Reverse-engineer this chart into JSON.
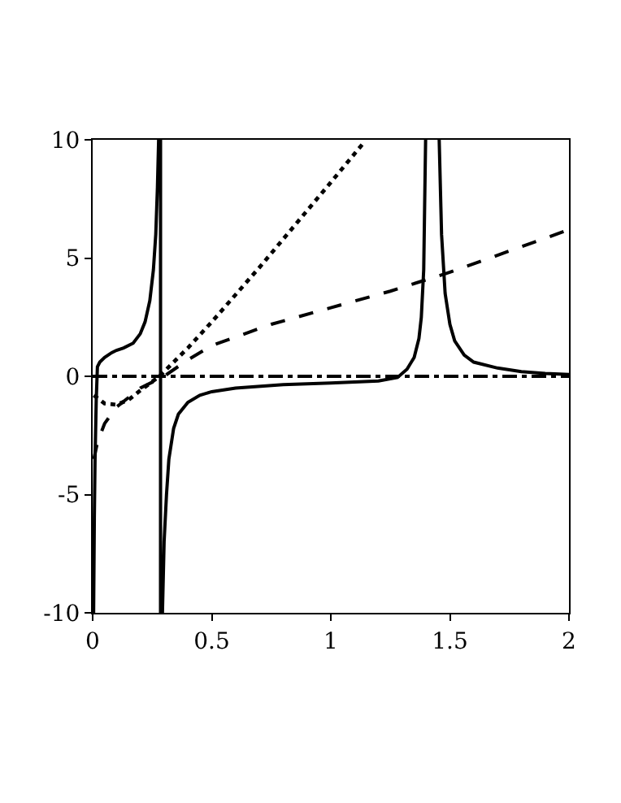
{
  "chart_data": {
    "type": "line",
    "xlim": [
      0,
      2
    ],
    "ylim": [
      -10,
      10
    ],
    "xticks": [
      0,
      0.5,
      1,
      1.5,
      2
    ],
    "yticks": [
      -10,
      -5,
      0,
      5,
      10
    ],
    "marker": "none",
    "series": [
      {
        "color": "#000000",
        "line_style": "solid",
        "x": [
          0.004,
          0.007,
          0.01,
          0.015,
          0.02,
          0.03,
          0.05,
          0.08,
          0.1,
          0.13,
          0.17,
          0.2,
          0.22,
          0.24,
          0.255,
          0.265,
          0.272,
          0.277,
          0.285,
          0.285,
          0.293,
          0.3,
          0.31,
          0.32,
          0.34,
          0.36,
          0.4,
          0.45,
          0.5,
          0.6,
          0.8,
          1.0,
          1.2,
          1.28,
          1.32,
          1.35,
          1.37,
          1.38,
          1.39,
          1.398,
          null,
          1.455,
          1.465,
          1.48,
          1.5,
          1.52,
          1.56,
          1.6,
          1.7,
          1.8,
          1.9,
          2.0
        ],
        "values": [
          -10,
          -6,
          -3.5,
          -1,
          0.4,
          0.6,
          0.8,
          1.0,
          1.1,
          1.2,
          1.4,
          1.8,
          2.3,
          3.2,
          4.5,
          6,
          8,
          10,
          10,
          -10,
          -10,
          -7,
          -5,
          -3.5,
          -2.2,
          -1.6,
          -1.1,
          -0.8,
          -0.65,
          -0.5,
          -0.35,
          -0.28,
          -0.2,
          -0.05,
          0.3,
          0.8,
          1.6,
          2.5,
          4.5,
          10,
          null,
          10,
          6,
          3.5,
          2.2,
          1.5,
          0.9,
          0.6,
          0.35,
          0.2,
          0.12,
          0.08
        ]
      },
      {
        "color": "#000000",
        "line_style": "dotted",
        "x": [
          0.005,
          0.05,
          0.1,
          0.15,
          0.2,
          0.28,
          0.4,
          0.5,
          0.7,
          0.9,
          1.0,
          1.14
        ],
        "values": [
          -0.8,
          -1.15,
          -1.2,
          -1.0,
          -0.6,
          0,
          1.2,
          2.3,
          4.6,
          7,
          8.2,
          9.9
        ]
      },
      {
        "color": "#000000",
        "line_style": "dashed",
        "x": [
          0.005,
          0.02,
          0.05,
          0.1,
          0.15,
          0.2,
          0.3,
          0.4,
          0.5,
          0.75,
          1.0,
          1.25,
          1.5,
          1.75,
          2.0
        ],
        "values": [
          -3.5,
          -2.8,
          -2.0,
          -1.3,
          -0.9,
          -0.5,
          0,
          0.7,
          1.3,
          2.2,
          2.9,
          3.6,
          4.4,
          5.3,
          6.2
        ]
      },
      {
        "color": "#000000",
        "line_style": "dashdot",
        "x": [
          0,
          2
        ],
        "values": [
          0,
          0
        ]
      }
    ]
  }
}
